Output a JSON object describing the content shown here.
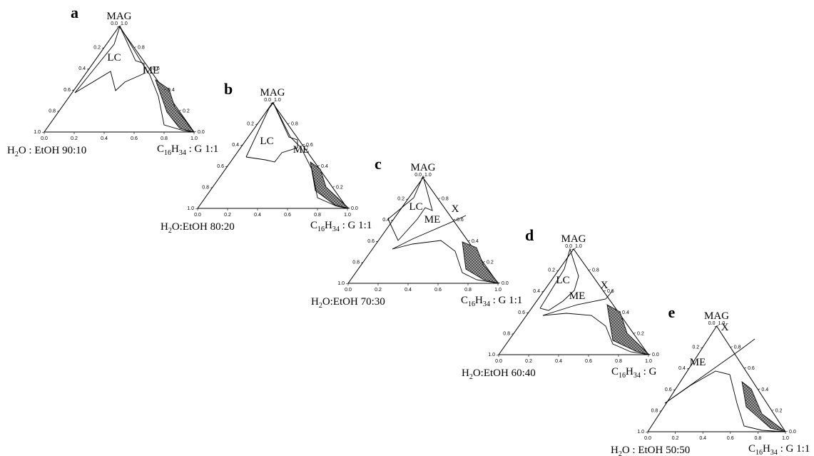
{
  "ticks": {
    "bottom": [
      "0.0",
      "0.2",
      "0.4",
      "0.6",
      "0.8",
      "1.0"
    ],
    "left": [
      "0.0",
      "0.2",
      "0.4",
      "0.6",
      "0.8",
      "1.0"
    ],
    "right": [
      "1.0",
      "0.8",
      "0.6",
      "0.4",
      "0.2",
      "0.0"
    ]
  },
  "panels": [
    {
      "letter": "a",
      "apex": "MAG",
      "left_label": [
        "H",
        "2",
        "O : EtOH 90:10"
      ],
      "right_label": [
        "C",
        "16",
        "H",
        "34",
        " : G 1:1"
      ],
      "regions": [
        "LC",
        "ME"
      ]
    },
    {
      "letter": "b",
      "apex": "MAG",
      "left_label": [
        "H",
        "2",
        "O:EtOH 80:20"
      ],
      "right_label": [
        "C",
        "16",
        "H",
        "34",
        " : G 1:1"
      ],
      "regions": [
        "LC",
        "ME"
      ]
    },
    {
      "letter": "c",
      "apex": "MAG",
      "left_label": [
        "H",
        "2",
        "O:EtOH 70:30"
      ],
      "right_label": [
        "C",
        "16",
        "H",
        "34",
        " : G 1:1"
      ],
      "regions": [
        "LC",
        "ME",
        "X"
      ]
    },
    {
      "letter": "d",
      "apex": "MAG",
      "left_label": [
        "H",
        "2",
        "O:EtOH 60:40"
      ],
      "right_label": [
        "C",
        "16",
        "H",
        "34",
        " : G"
      ],
      "regions": [
        "LC",
        "ME",
        "X"
      ]
    },
    {
      "letter": "e",
      "apex": "MAG",
      "left_label": [
        "H",
        "2",
        "O : EtOH 50:50"
      ],
      "right_label": [
        "C",
        "16",
        "H",
        "34",
        " : G 1:1"
      ],
      "regions": [
        "ME",
        "X"
      ]
    }
  ]
}
